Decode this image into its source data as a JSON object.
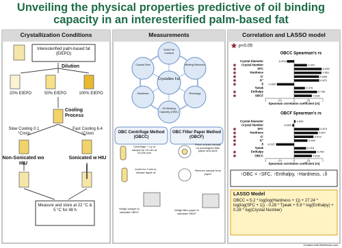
{
  "title": "Unveiling the physical properties predictive of oil binding capacity in an interesterified palm-based fat",
  "crystallization": {
    "header": "Crystallization Conditions",
    "start": "Interesterified palm-based fat (EIEPO)",
    "dilution": "Dilution",
    "dilutions": [
      "20% EIEPO",
      "50% EIEPO",
      "100% EIEPO"
    ],
    "cooling": "Cooling Process",
    "cooling_options": [
      "Slow Cooling 0.1 °C/min",
      "Fast Cooling 6.4 °C/min"
    ],
    "sonication": [
      "Non-Sonicated wo HIU",
      "Sonicated w HIU"
    ],
    "final": "Measure and store at 22 °C & 5 °C for 48 h"
  },
  "measurements": {
    "header": "Measurements",
    "center": "Crystallize Fat",
    "properties": [
      "Solid Fat Content",
      "Melting Behavior",
      "Rheology",
      "Oil Binding Capacity (OBC)",
      "Hardness",
      "Crystal Size"
    ],
    "methods": [
      {
        "title": "OBC Centrifuge Method (OBCC)",
        "steps": [
          "Centrifuge ~1 g of sample for 15 min at 10,000 rpm",
          "Invert for 3 min to release liquid oil",
          "Weigh sample to calculate OBCC"
        ]
      },
      {
        "title": "OBC Filter Paper Method (OBCF)",
        "steps": [
          "Place molded sample on preweighed filter paper and store",
          "Remove sample from paper",
          "Weigh filter paper to calculate OBCF"
        ]
      }
    ]
  },
  "correlation": {
    "header": "Correlation and LASSO model",
    "significance": "p<0.05",
    "charts": [
      {
        "type": "bar",
        "title": "OBCC Spearman's rs",
        "color": "#111111",
        "categories": [
          "Crystal Diameter",
          "Crystal Number",
          "SFC",
          "Hardness",
          "G'",
          "G''",
          "δ",
          "Tpeak",
          "Enthalpy",
          "OBCF"
        ],
        "values": [
          -0.254,
          0.447,
          0.96,
          0.951,
          0.868,
          0.872,
          -0.6,
          0.376,
          0.799,
          0.618
        ],
        "value_labels": [
          "-0.254",
          "0.447",
          "0.960",
          "0.951",
          "0.868",
          "0.872",
          "-0.600",
          "0.376",
          "0.799",
          "0.618"
        ],
        "significant": [
          false,
          true,
          true,
          true,
          true,
          true,
          true,
          false,
          true,
          true
        ],
        "xlim": [
          -1,
          1
        ],
        "xticks": [
          -1,
          -0.5,
          0,
          0.5,
          1
        ],
        "x_label": "Spearman correlation coefficient (rs)"
      },
      {
        "type": "bar",
        "title": "OBCF Spearman's rs",
        "color": "#111111",
        "categories": [
          "Crystal Diameter",
          "Crystal Number",
          "SFC",
          "Hardness",
          "G'",
          "G''",
          "δ",
          "Tpeak",
          "Enthalpy",
          "OBCC"
        ],
        "values": [
          0.05,
          -0.064,
          0.873,
          0.827,
          0.673,
          0.464,
          -0.627,
          0.418,
          0.764,
          0.618
        ],
        "value_labels": [
          "0.050",
          "-0.064",
          "0.873",
          "0.827",
          "0.673",
          "0.464",
          "-0.627",
          "0.418",
          "0.764",
          "0.618"
        ],
        "significant": [
          false,
          false,
          true,
          true,
          true,
          true,
          true,
          false,
          true,
          true
        ],
        "xlim": [
          -1,
          1
        ],
        "xticks": [
          -1,
          -0.5,
          0,
          0.5,
          1
        ],
        "x_label": "Spearman correlation coefficient (rs)"
      }
    ],
    "summary": "↑OBC = ↑SFC, ↑Enthalpy, ↑Hardness, ↓δ",
    "lasso": {
      "title": "LASSO Model",
      "equation": "OBCC = 5.2 * log(log(Hardness + 1)) + 27.24 * log(log(SFC + 1)) - 0.28 * Tpeak + 5.9 * log(Enthalpy) + 0.28 * log(Crystal Number)"
    }
  },
  "footer": "Created with BioRender.com"
}
